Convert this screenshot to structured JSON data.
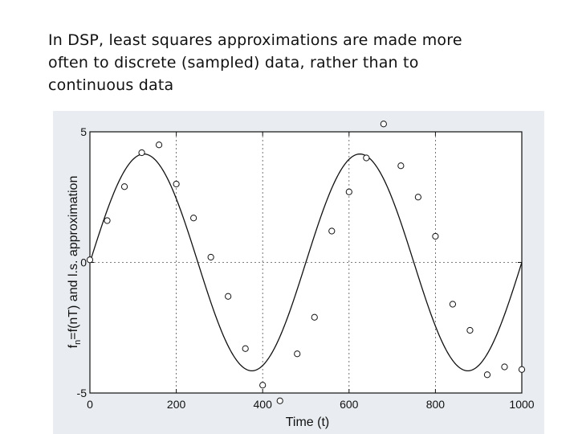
{
  "slide": {
    "lines": [
      "In DSP, least squares approximations are made more",
      "often to discrete (sampled) data, rather than to",
      "continuous data"
    ]
  },
  "colors": {
    "background": "#ffffff",
    "scan_background": "#e9edf1",
    "plot_background": "#ffffff",
    "ink": "#111111"
  },
  "chart_data": {
    "type": "scatter",
    "title": "",
    "xlabel": "Time (t)",
    "ylabel_main": "f",
    "ylabel_sub": "n",
    "ylabel_rest": "=f(nT) and l.s. approximation",
    "xlim": [
      0,
      1000
    ],
    "ylim": [
      -5,
      5
    ],
    "xticks": [
      0,
      200,
      400,
      600,
      800,
      1000
    ],
    "yticks": [
      -5,
      0,
      5
    ],
    "xtick_labels": [
      "0",
      "200",
      "400",
      "600",
      "800",
      "1000"
    ],
    "ytick_labels": [
      "-5",
      "0",
      "5"
    ],
    "grid": true,
    "series": [
      {
        "kind": "points",
        "marker": "circle",
        "x": [
          0,
          40,
          80,
          120,
          160,
          200,
          240,
          280,
          320,
          360,
          400,
          440,
          480,
          520,
          560,
          600,
          640,
          680,
          720,
          760,
          800,
          840,
          880,
          920,
          960,
          1000
        ],
        "y": [
          0.1,
          1.6,
          2.9,
          4.2,
          4.5,
          3.0,
          1.7,
          0.2,
          -1.3,
          -3.3,
          -4.7,
          -5.3,
          -3.5,
          -2.1,
          1.2,
          2.7,
          4.0,
          5.3,
          3.7,
          2.5,
          1.0,
          -1.6,
          -2.6,
          -4.3,
          -4.0,
          -4.1
        ],
        "x_fixed": true
      },
      {
        "kind": "line",
        "amplitude": 4.15,
        "period": 500,
        "phase": 0
      }
    ]
  }
}
